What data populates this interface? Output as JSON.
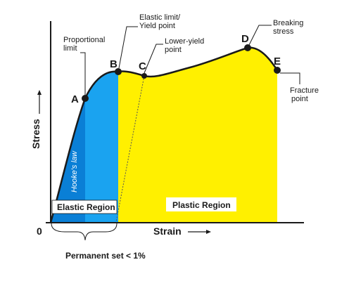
{
  "axes": {
    "y_label": "Stress",
    "x_label": "Strain",
    "origin_label": "0"
  },
  "points": {
    "A": "A",
    "B": "B",
    "C": "C",
    "D": "D",
    "E": "E"
  },
  "annotations": {
    "proportional_limit": [
      "Proportional",
      "limit"
    ],
    "elastic_limit": [
      "Elastic limit/",
      "Yield point"
    ],
    "lower_yield": [
      "Lower-yield",
      "point"
    ],
    "breaking_stress": [
      "Breaking",
      "stress"
    ],
    "fracture_point": [
      "Fracture",
      "point"
    ]
  },
  "regions": {
    "elastic": "Elastic Region",
    "plastic": "Plastic Region",
    "hookes_law": "Hooke's law"
  },
  "permanent_set": "Permanent set < 1%",
  "colors": {
    "elastic_fill": "#1aa3f0",
    "hooke_fill": "#0a7fd6",
    "plastic_fill": "#fff000",
    "curve": "#1a1a1a"
  }
}
